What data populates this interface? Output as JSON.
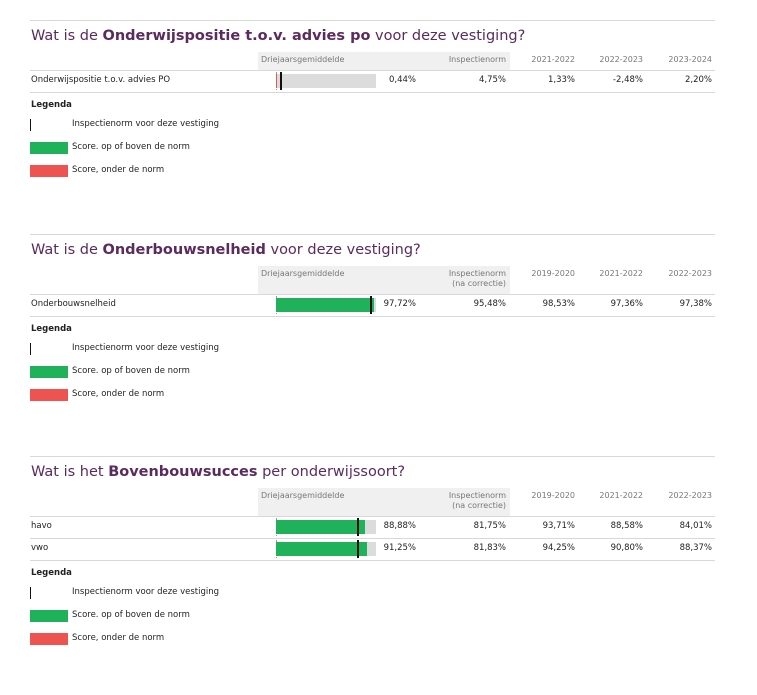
{
  "sections": [
    {
      "title": {
        "prefix": "Wat is de ",
        "bold": "Onderwijspositie t.o.v. advies po",
        "suffix": " voor deze vestiging?"
      },
      "columns": {
        "average": "Driejaarsgemiddelde",
        "norm": [
          "Inspectienorm"
        ],
        "years": [
          "2021-2022",
          "2022-2023",
          "2023-2024"
        ]
      },
      "xlim": [
        0,
        100
      ],
      "rows": [
        {
          "label": "Onderwijspositie t.o.v. advies PO",
          "average": 0.44,
          "average_label": "0,44%",
          "norm": 4.75,
          "norm_label": "4,75%",
          "years": [
            "1,33%",
            "-2,48%",
            "2,20%"
          ]
        }
      ],
      "legend": {
        "title": "Legenda",
        "items": [
          "Inspectienorm voor deze vestiging",
          "Score. op of boven de norm",
          "Score, onder de norm"
        ]
      }
    },
    {
      "title": {
        "prefix": "Wat is de ",
        "bold": "Onderbouwsnelheid",
        "suffix": " voor deze vestiging?"
      },
      "columns": {
        "average": "Driejaarsgemiddelde",
        "norm": [
          "Inspectienorm",
          "(na correctie)"
        ],
        "years": [
          "2019-2020",
          "2021-2022",
          "2022-2023"
        ]
      },
      "xlim": [
        0,
        100
      ],
      "rows": [
        {
          "label": "Onderbouwsnelheid",
          "average": 97.72,
          "average_label": "97,72%",
          "norm": 95.48,
          "norm_label": "95,48%",
          "years": [
            "98,53%",
            "97,36%",
            "97,38%"
          ]
        }
      ],
      "legend": {
        "title": "Legenda",
        "items": [
          "Inspectienorm voor deze vestiging",
          "Score. op of boven de norm",
          "Score, onder de norm"
        ]
      }
    },
    {
      "title": {
        "prefix": "Wat is het ",
        "bold": "Bovenbouwsucces",
        "suffix": " per onderwijssoort?"
      },
      "columns": {
        "average": "Driejaarsgemiddelde",
        "norm": [
          "Inspectienorm",
          "(na correctie)"
        ],
        "years": [
          "2019-2020",
          "2021-2022",
          "2022-2023"
        ]
      },
      "xlim": [
        0,
        100
      ],
      "rows": [
        {
          "label": "havo",
          "average": 88.88,
          "average_label": "88,88%",
          "norm": 81.75,
          "norm_label": "81,75%",
          "years": [
            "93,71%",
            "88,58%",
            "84,01%"
          ]
        },
        {
          "label": "vwo",
          "average": 91.25,
          "average_label": "91,25%",
          "norm": 81.83,
          "norm_label": "81,83%",
          "years": [
            "94,25%",
            "90,80%",
            "88,37%"
          ]
        }
      ],
      "legend": {
        "title": "Legenda",
        "items": [
          "Inspectienorm voor deze vestiging",
          "Score. op of boven de norm",
          "Score, onder de norm"
        ]
      }
    }
  ]
}
